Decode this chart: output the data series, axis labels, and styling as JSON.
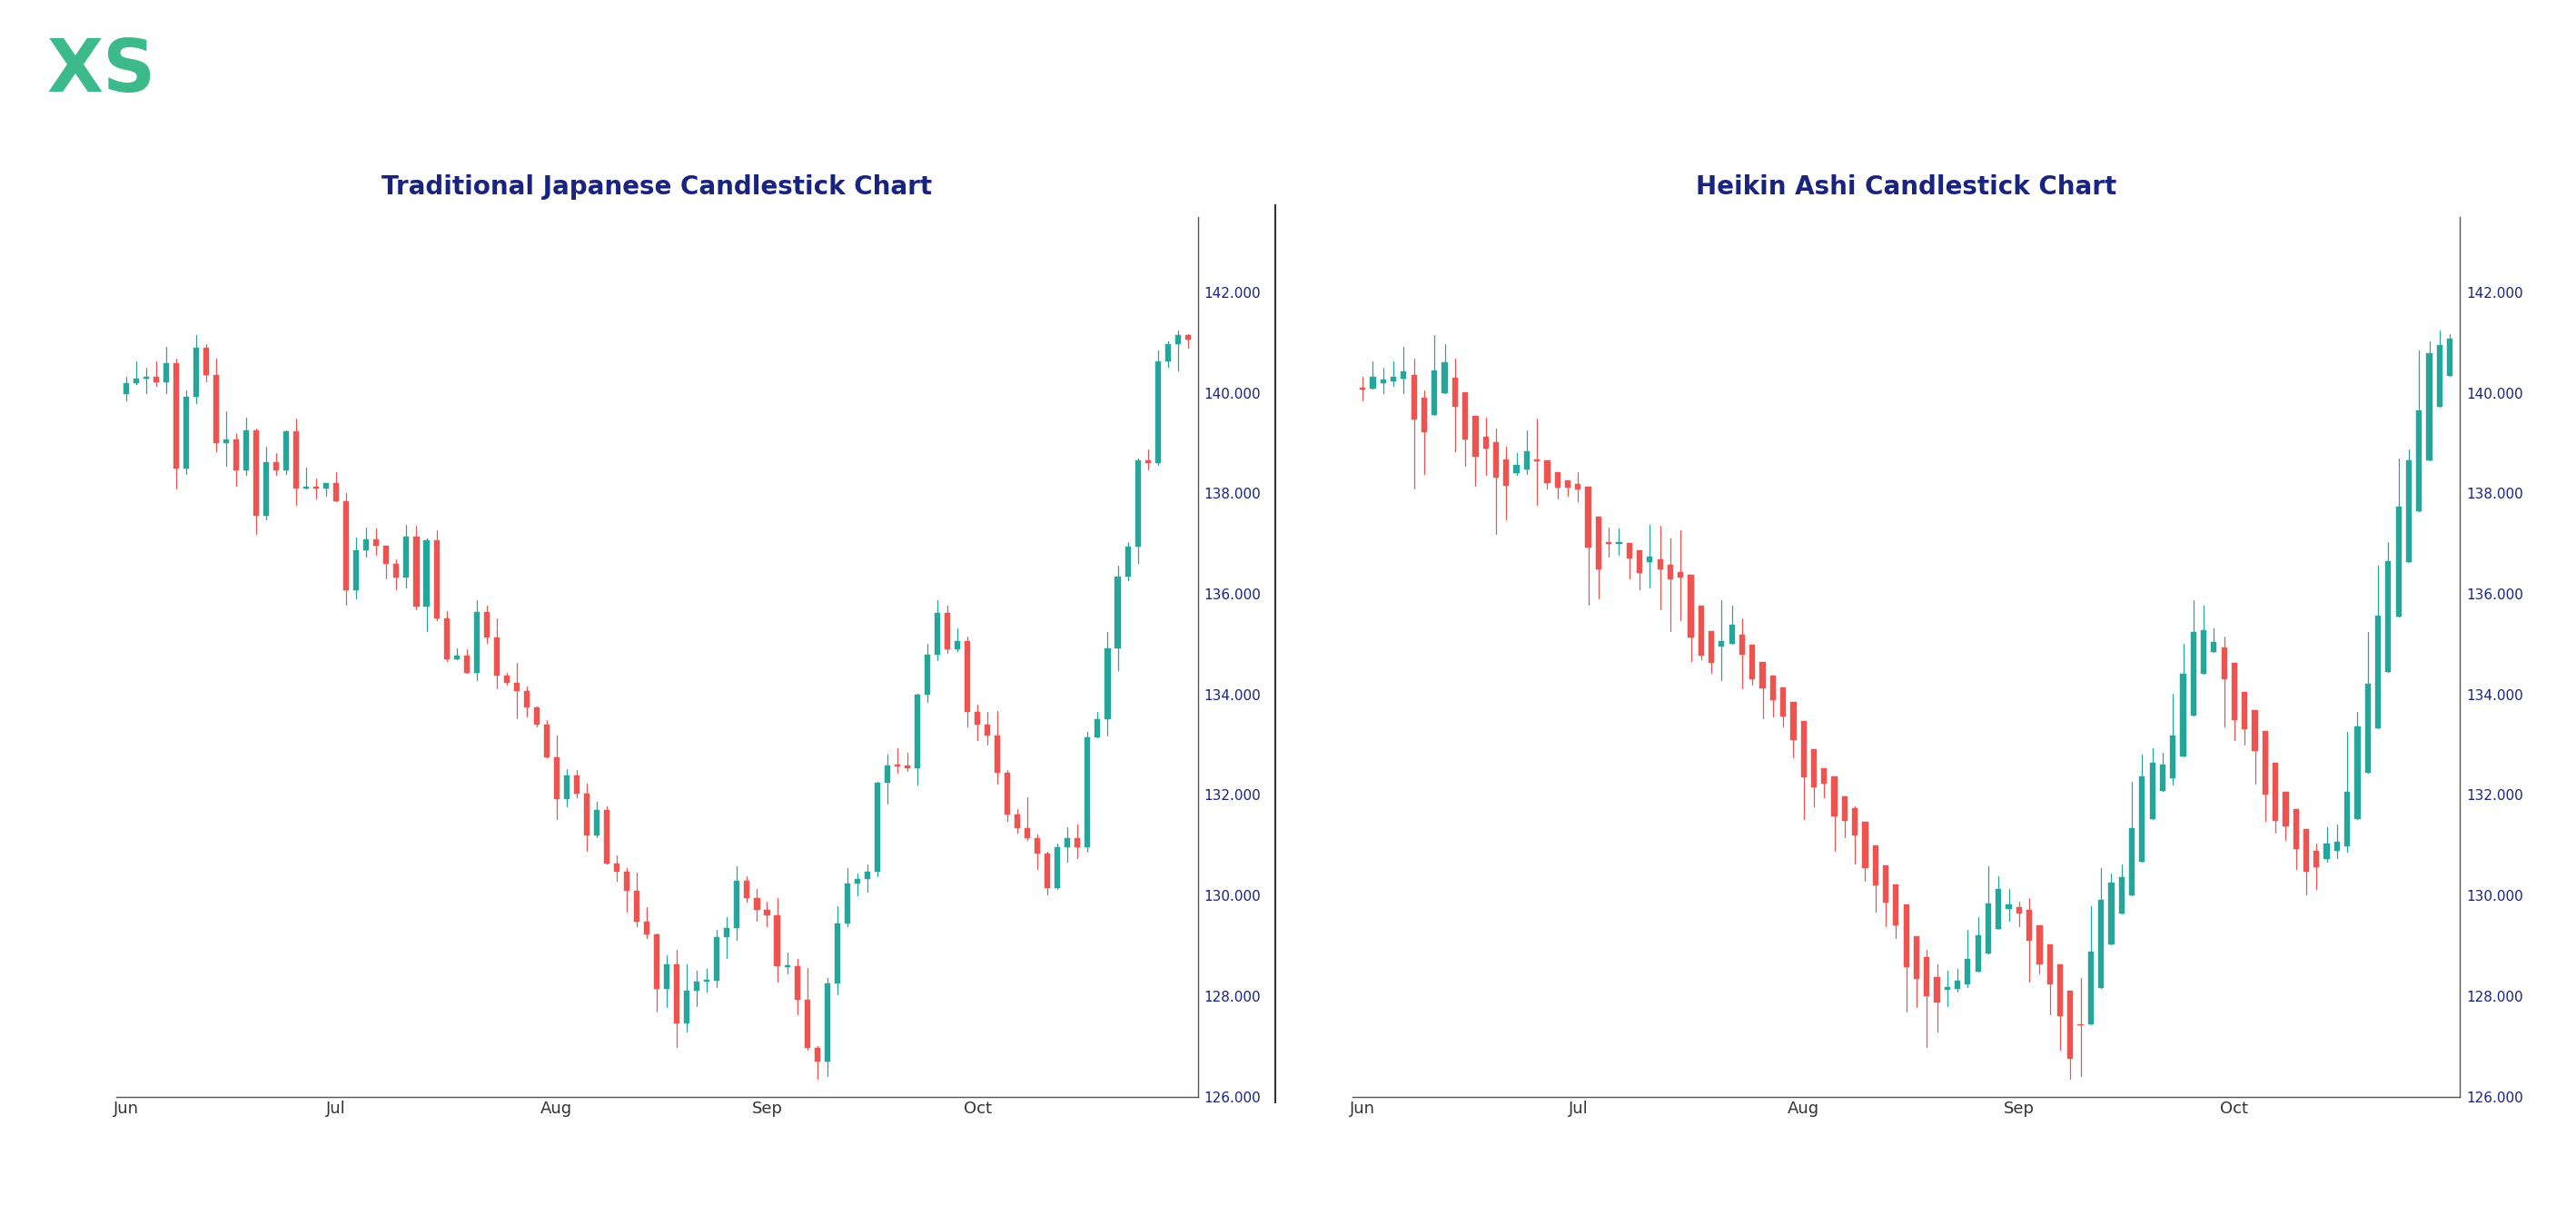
{
  "title_left": "Traditional Japanese Candlestick Chart",
  "title_right": "Heikin Ashi Candlestick Chart",
  "title_color": "#1a237e",
  "bull_color": "#26a69a",
  "bear_color": "#ef5350",
  "background_color": "#ffffff",
  "y_min": 126000,
  "y_max": 143500,
  "y_ticks": [
    126000,
    128000,
    130000,
    132000,
    134000,
    136000,
    138000,
    140000,
    142000
  ],
  "x_labels": [
    "Jun",
    "Jul",
    "Aug",
    "Sep",
    "Oct"
  ],
  "x_tick_positions": [
    0,
    21,
    43,
    64,
    85
  ],
  "logo_color": "#3dba8c",
  "logo_text": "XS",
  "n_candles": 107,
  "price_path": [
    140.0,
    139.5,
    140.2,
    139.8,
    140.5,
    139.3,
    140.1,
    139.6,
    140.3,
    139.0,
    139.4,
    138.8,
    139.2,
    138.5,
    139.0,
    138.3,
    138.7,
    138.1,
    138.5,
    137.8,
    138.2,
    137.5,
    137.0,
    137.4,
    136.8,
    137.2,
    136.5,
    136.0,
    136.4,
    135.8,
    136.2,
    135.5,
    135.0,
    135.4,
    134.8,
    135.2,
    134.5,
    134.0,
    134.4,
    133.8,
    134.2,
    133.5,
    133.0,
    132.4,
    132.0,
    131.5,
    131.0,
    131.5,
    130.8,
    130.2,
    129.8,
    129.3,
    128.8,
    128.3,
    127.8,
    127.5,
    127.8,
    128.0,
    128.5,
    129.0,
    129.5,
    129.8,
    130.2,
    130.0,
    129.5,
    129.0,
    128.5,
    127.8,
    127.3,
    127.0,
    128.0,
    129.5,
    130.0,
    130.5,
    131.2,
    131.8,
    132.5,
    133.0,
    133.5,
    134.0,
    134.8,
    135.2,
    135.0,
    134.5,
    134.0,
    133.5,
    133.0,
    132.5,
    132.0,
    131.5,
    131.2,
    130.8,
    130.5,
    131.0,
    131.5,
    132.0,
    133.0,
    134.0,
    135.0,
    136.5,
    137.5,
    138.5,
    139.5,
    140.2,
    140.8,
    141.0,
    140.5
  ]
}
